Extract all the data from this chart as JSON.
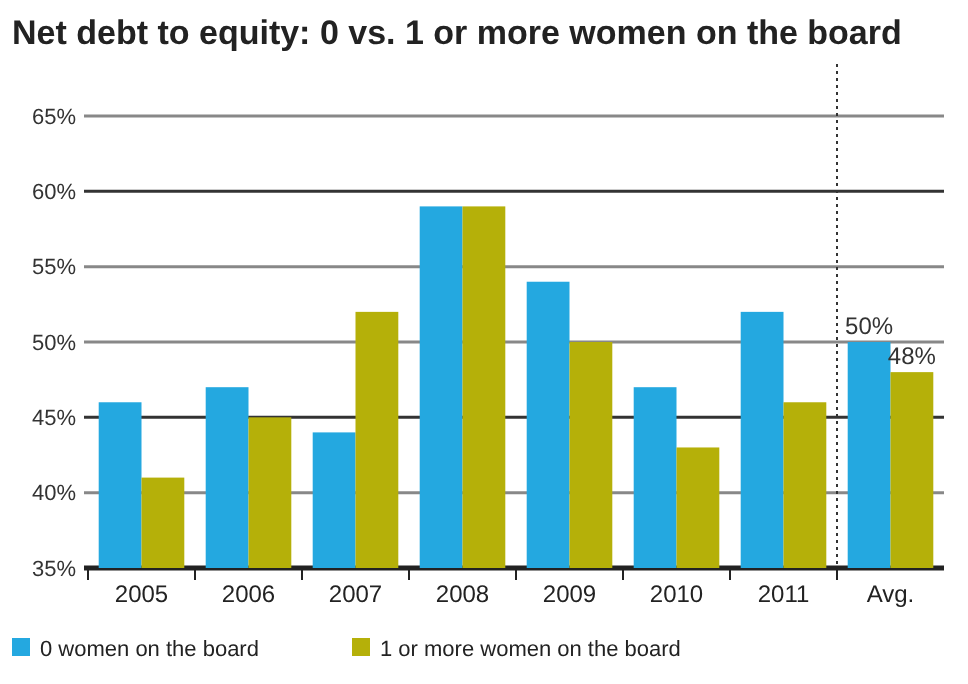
{
  "chart_data": {
    "type": "bar",
    "title": "Net debt to equity: 0 vs. 1 or more women on the board",
    "categories": [
      "2005",
      "2006",
      "2007",
      "2008",
      "2009",
      "2010",
      "2011",
      "Avg."
    ],
    "series": [
      {
        "name": "0 women on the board",
        "color": "#24a8e0",
        "values": [
          46,
          47,
          44,
          59,
          54,
          47,
          52,
          50
        ],
        "value_labels": [
          null,
          null,
          null,
          null,
          null,
          null,
          null,
          "50%"
        ]
      },
      {
        "name": "1 or more women on the board",
        "color": "#b5b009",
        "values": [
          41,
          45,
          52,
          59,
          50,
          43,
          46,
          48
        ],
        "value_labels": [
          null,
          null,
          null,
          null,
          null,
          null,
          null,
          "48%"
        ]
      }
    ],
    "ylim": [
      35,
      65
    ],
    "yticks": [
      {
        "value": 35,
        "label": "35%"
      },
      {
        "value": 40,
        "label": "40%"
      },
      {
        "value": 45,
        "label": "45%"
      },
      {
        "value": 50,
        "label": "50%"
      },
      {
        "value": 55,
        "label": "55%"
      },
      {
        "value": 60,
        "label": "60%"
      },
      {
        "value": 65,
        "label": "65%"
      }
    ],
    "ref_lines": [
      {
        "axis": "x",
        "value": "Avg.",
        "line_style": "dotted",
        "color": "#333333"
      }
    ],
    "grid": "y",
    "legend": "bottom"
  }
}
